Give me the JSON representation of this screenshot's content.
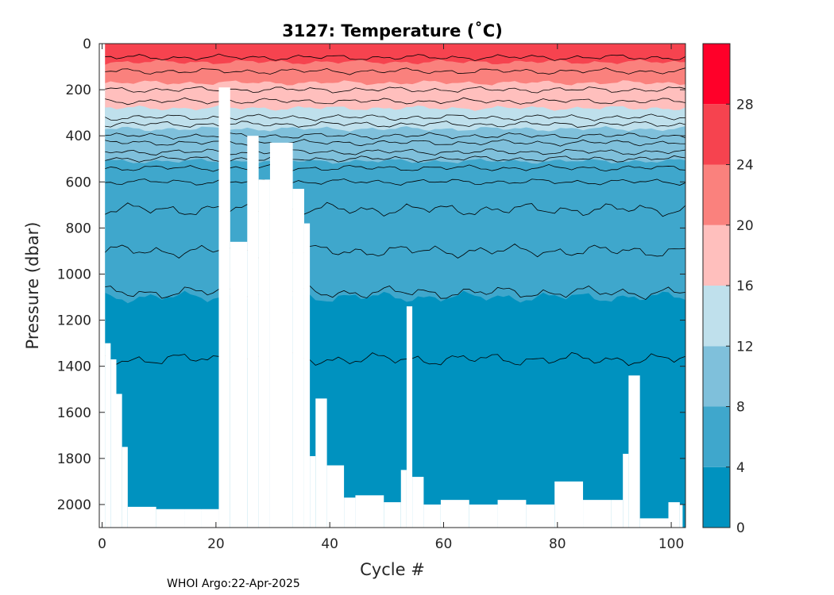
{
  "chart_data": {
    "type": "contour",
    "title": "3127:  Temperature (˚C)",
    "xlabel": "Cycle #",
    "ylabel": "Pressure (dbar)",
    "xlim": [
      -0.5,
      102.5
    ],
    "ylim": [
      0,
      2100
    ],
    "y_reversed": true,
    "x_ticks": [
      0,
      20,
      40,
      60,
      80,
      100
    ],
    "x_tick_labels": [
      "0",
      "20",
      "40",
      "60",
      "80",
      "100"
    ],
    "y_ticks": [
      0,
      200,
      400,
      600,
      800,
      1000,
      1200,
      1400,
      1600,
      1800,
      2000
    ],
    "y_tick_labels": [
      "0",
      "200",
      "400",
      "600",
      "800",
      "1000",
      "1200",
      "1400",
      "1600",
      "1800",
      "2000"
    ],
    "colorbar": {
      "ticks": [
        0,
        4,
        8,
        12,
        16,
        20,
        24,
        28
      ],
      "tick_labels": [
        "0",
        "4",
        "8",
        "12",
        "16",
        "20",
        "24",
        "28"
      ],
      "range": [
        0,
        32
      ],
      "bands": [
        {
          "from": 0,
          "to": 4,
          "color": "#0092bf"
        },
        {
          "from": 4,
          "to": 8,
          "color": "#3fa7cc"
        },
        {
          "from": 8,
          "to": 12,
          "color": "#7fc0db"
        },
        {
          "from": 12,
          "to": 16,
          "color": "#bfe0ec"
        },
        {
          "from": 16,
          "to": 20,
          "color": "#ffbfbd"
        },
        {
          "from": 20,
          "to": 24,
          "color": "#fa817d"
        },
        {
          "from": 24,
          "to": 28,
          "color": "#f6434f"
        },
        {
          "from": 28,
          "to": 32,
          "color": "#ff0029"
        }
      ]
    },
    "temperature_levels_depth": [
      {
        "boundary_C": 24,
        "pressure_dbar": 80
      },
      {
        "boundary_C": 20,
        "pressure_dbar": 170
      },
      {
        "boundary_C": 16,
        "pressure_dbar": 280
      },
      {
        "boundary_C": 12,
        "pressure_dbar": 370
      },
      {
        "boundary_C": 8,
        "pressure_dbar": 510
      },
      {
        "boundary_C": 4,
        "pressure_dbar": 1100
      }
    ],
    "profile_max_pressure_dbar": [
      {
        "cycle": 1,
        "max_p": 1300
      },
      {
        "cycle": 2,
        "max_p": 1370
      },
      {
        "cycle": 3,
        "max_p": 1520
      },
      {
        "cycle": 4,
        "max_p": 1750
      },
      {
        "cycle": 5,
        "max_p": 2010
      },
      {
        "cycle": 10,
        "max_p": 2020
      },
      {
        "cycle": 15,
        "max_p": 2020
      },
      {
        "cycle": 18,
        "max_p": 2020
      },
      {
        "cycle": 21,
        "max_p": 190
      },
      {
        "cycle": 23,
        "max_p": 860
      },
      {
        "cycle": 26,
        "max_p": 400
      },
      {
        "cycle": 28,
        "max_p": 590
      },
      {
        "cycle": 30,
        "max_p": 430
      },
      {
        "cycle": 34,
        "max_p": 630
      },
      {
        "cycle": 36,
        "max_p": 780
      },
      {
        "cycle": 37,
        "max_p": 1790
      },
      {
        "cycle": 38,
        "max_p": 1540
      },
      {
        "cycle": 40,
        "max_p": 1830
      },
      {
        "cycle": 43,
        "max_p": 1970
      },
      {
        "cycle": 45,
        "max_p": 1960
      },
      {
        "cycle": 50,
        "max_p": 1990
      },
      {
        "cycle": 53,
        "max_p": 1850
      },
      {
        "cycle": 54,
        "max_p": 1140
      },
      {
        "cycle": 55,
        "max_p": 1880
      },
      {
        "cycle": 57,
        "max_p": 2000
      },
      {
        "cycle": 60,
        "max_p": 1980
      },
      {
        "cycle": 65,
        "max_p": 2000
      },
      {
        "cycle": 70,
        "max_p": 1980
      },
      {
        "cycle": 75,
        "max_p": 2000
      },
      {
        "cycle": 80,
        "max_p": 1900
      },
      {
        "cycle": 85,
        "max_p": 1980
      },
      {
        "cycle": 90,
        "max_p": 1980
      },
      {
        "cycle": 92,
        "max_p": 1780
      },
      {
        "cycle": 93,
        "max_p": 1440
      },
      {
        "cycle": 95,
        "max_p": 2060
      },
      {
        "cycle": 100,
        "max_p": 1990
      },
      {
        "cycle": 102,
        "max_p": 2000
      }
    ]
  },
  "footer": {
    "credit": "WHOI Argo:22-Apr-2025"
  }
}
